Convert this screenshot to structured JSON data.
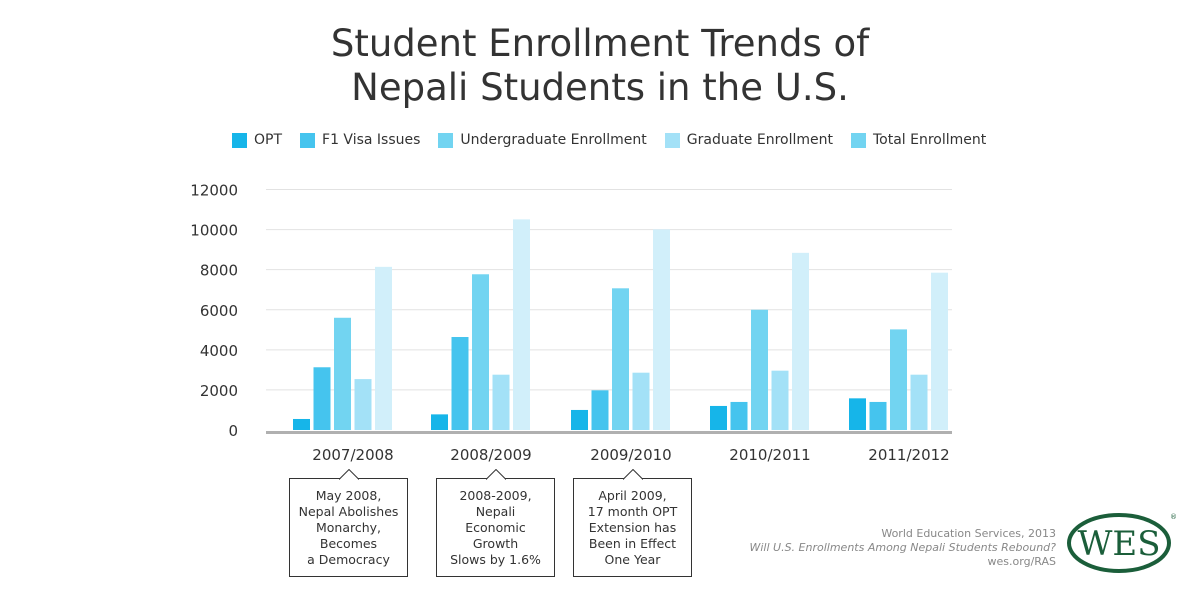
{
  "title_lines": [
    "Student Enrollment Trends of",
    "Nepali Students in the U.S."
  ],
  "chart_data": {
    "type": "bar",
    "title": "Student Enrollment Trends of Nepali Students in the U.S.",
    "categories": [
      "2007/2008",
      "2008/2009",
      "2009/2010",
      "2010/2011",
      "2011/2012"
    ],
    "series": [
      {
        "name": "OPT",
        "color": "#16b5e9",
        "values": [
          550,
          780,
          1000,
          1200,
          1580
        ]
      },
      {
        "name": "F1 Visa Issues",
        "color": "#45c4ee",
        "values": [
          3130,
          4640,
          1980,
          1400,
          1400
        ]
      },
      {
        "name": "Undergraduate Enrollment",
        "color": "#72d4f1",
        "values": [
          5600,
          7770,
          7070,
          6000,
          5020
        ]
      },
      {
        "name": "Graduate Enrollment",
        "color": "#a3e1f7",
        "values": [
          2540,
          2760,
          2860,
          2960,
          2760
        ]
      },
      {
        "name": "Total Enrollment",
        "color": "#d1effa",
        "legend_color": "#72d4f1",
        "values": [
          8140,
          10510,
          10010,
          8840,
          7850
        ]
      }
    ],
    "yticks": [
      "0",
      "2000",
      "4000",
      "6000",
      "8000",
      "10000",
      "12000"
    ],
    "ylim": [
      0,
      12000
    ],
    "grid": true,
    "legend_position": "top"
  },
  "annotations": [
    {
      "category": "2007/2008",
      "text": "May 2008,\nNepal Abolishes\nMonarchy,\nBecomes\na Democracy"
    },
    {
      "category": "2008/2009",
      "text": "2008-2009,\nNepali\nEconomic Growth\nSlows by 1.6%"
    },
    {
      "category": "2009/2010",
      "text": "April 2009,\n17 month OPT\nExtension has\nBeen in Effect\nOne Year"
    }
  ],
  "footer": {
    "line1": "World Education Services, 2013",
    "line2": "Will U.S. Enrollments Among Nepali Students Rebound?",
    "line3": "wes.org/RAS"
  },
  "logo": {
    "text": "WES",
    "color": "#1b5e3a"
  }
}
